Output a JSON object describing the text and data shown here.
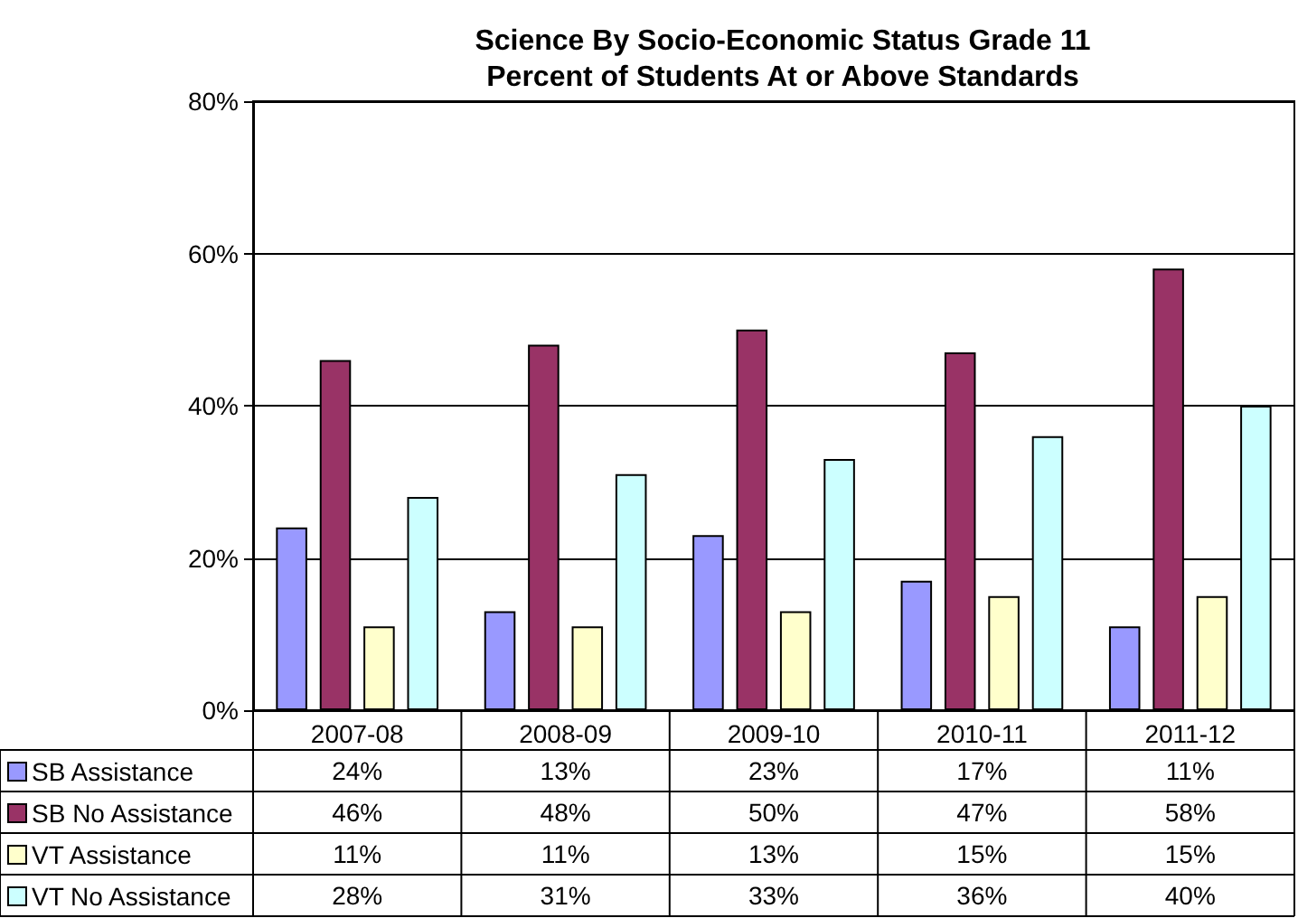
{
  "chart_data": {
    "type": "bar",
    "title": "Science By Socio-Economic Status Grade 11\nPercent of Students At or Above Standards",
    "categories": [
      "2007-08",
      "2008-09",
      "2009-10",
      "2010-11",
      "2011-12"
    ],
    "series": [
      {
        "name": "SB Assistance",
        "color": "#9999ff",
        "values": [
          24,
          13,
          23,
          17,
          11
        ],
        "value_labels": [
          "24%",
          "13%",
          "23%",
          "17%",
          "11%"
        ]
      },
      {
        "name": "SB No Assistance",
        "color": "#993366",
        "values": [
          46,
          48,
          50,
          47,
          58
        ],
        "value_labels": [
          "46%",
          "48%",
          "50%",
          "47%",
          "58%"
        ]
      },
      {
        "name": "VT Assistance",
        "color": "#ffffcc",
        "values": [
          11,
          11,
          13,
          15,
          15
        ],
        "value_labels": [
          "11%",
          "11%",
          "13%",
          "15%",
          "15%"
        ]
      },
      {
        "name": "VT No Assistance",
        "color": "#ccffff",
        "values": [
          28,
          31,
          33,
          36,
          40
        ],
        "value_labels": [
          "28%",
          "31%",
          "33%",
          "36%",
          "40%"
        ]
      }
    ],
    "ylim": [
      0,
      80
    ],
    "yticks": [
      {
        "value": 0,
        "label": "0%"
      },
      {
        "value": 20,
        "label": "20%"
      },
      {
        "value": 40,
        "label": "40%"
      },
      {
        "value": 60,
        "label": "60%"
      },
      {
        "value": 80,
        "label": "80%"
      }
    ],
    "grid": "y",
    "legend": "bottom left"
  }
}
